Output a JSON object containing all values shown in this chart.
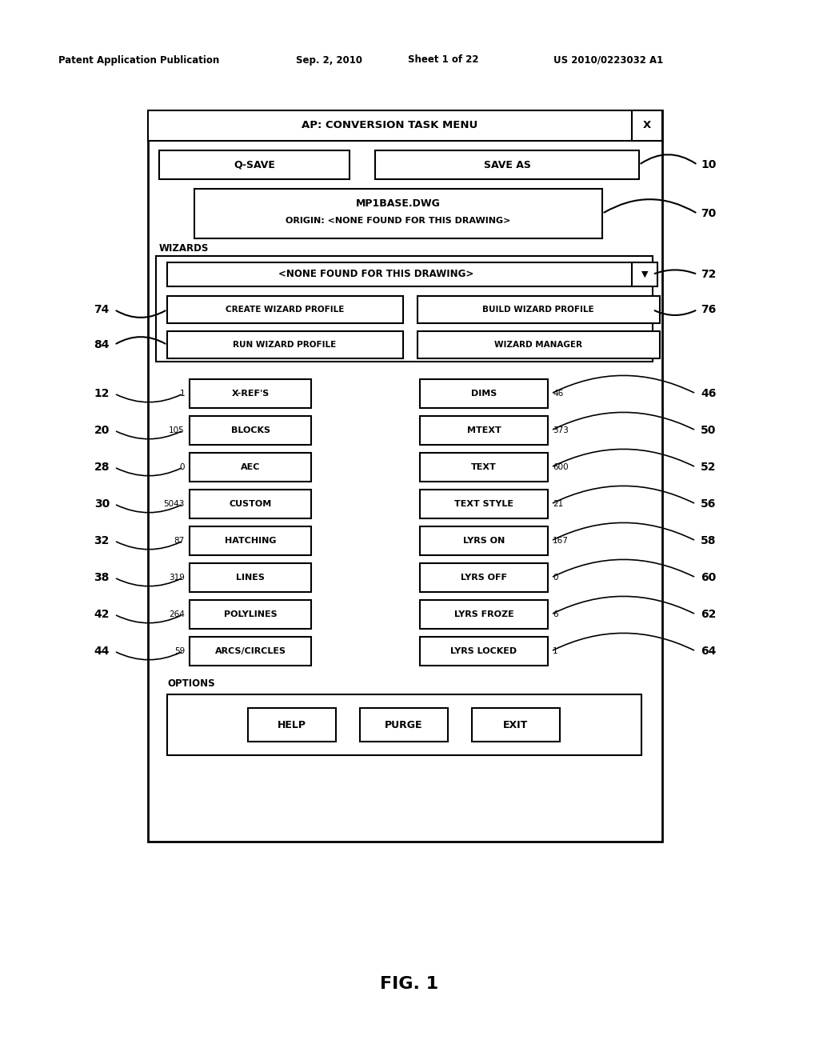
{
  "header_text": "Patent Application Publication",
  "header_date": "Sep. 2, 2010",
  "header_sheet": "Sheet 1 of 22",
  "header_patent": "US 2010/0223032 A1",
  "fig_label": "FIG. 1",
  "title_bar": "AP: CONVERSION TASK MENU",
  "title_x": "X",
  "btn_qsave": "Q-SAVE",
  "btn_saveas": "SAVE AS",
  "info_line1": "MP1BASE.DWG",
  "info_line2": "ORIGIN: <NONE FOUND FOR THIS DRAWING>",
  "label_wizards": "WIZARDS",
  "dropdown_text": "<NONE FOUND FOR THIS DRAWING>",
  "btn_create": "CREATE WIZARD PROFILE",
  "btn_build": "BUILD WIZARD PROFILE",
  "btn_run": "RUN WIZARD PROFILE",
  "btn_wizard_mgr": "WIZARD MANAGER",
  "left_buttons": [
    "X-REF'S",
    "BLOCKS",
    "AEC",
    "CUSTOM",
    "HATCHING",
    "LINES",
    "POLYLINES",
    "ARCS/CIRCLES"
  ],
  "right_buttons": [
    "DIMS",
    "MTEXT",
    "TEXT",
    "TEXT STYLE",
    "LYRS ON",
    "LYRS OFF",
    "LYRS FROZE",
    "LYRS LOCKED"
  ],
  "left_nums": [
    "1",
    "105",
    "0",
    "5043",
    "87",
    "319",
    "264",
    "59"
  ],
  "right_nums": [
    "46",
    "373",
    "600",
    "21",
    "167",
    "0",
    "6",
    "1"
  ],
  "left_labels": [
    "12",
    "20",
    "28",
    "30",
    "32",
    "38",
    "42",
    "44"
  ],
  "right_label_vals": [
    "46",
    "50",
    "52",
    "56",
    "58",
    "60",
    "62",
    "64"
  ],
  "label_10": "10",
  "label_70": "70",
  "label_72": "72",
  "label_74": "74",
  "label_84": "84",
  "label_76": "76",
  "label_options": "OPTIONS",
  "btn_help": "HELP",
  "btn_purge": "PURGE",
  "btn_exit": "EXIT",
  "bg_color": "#ffffff",
  "text_color": "#000000"
}
